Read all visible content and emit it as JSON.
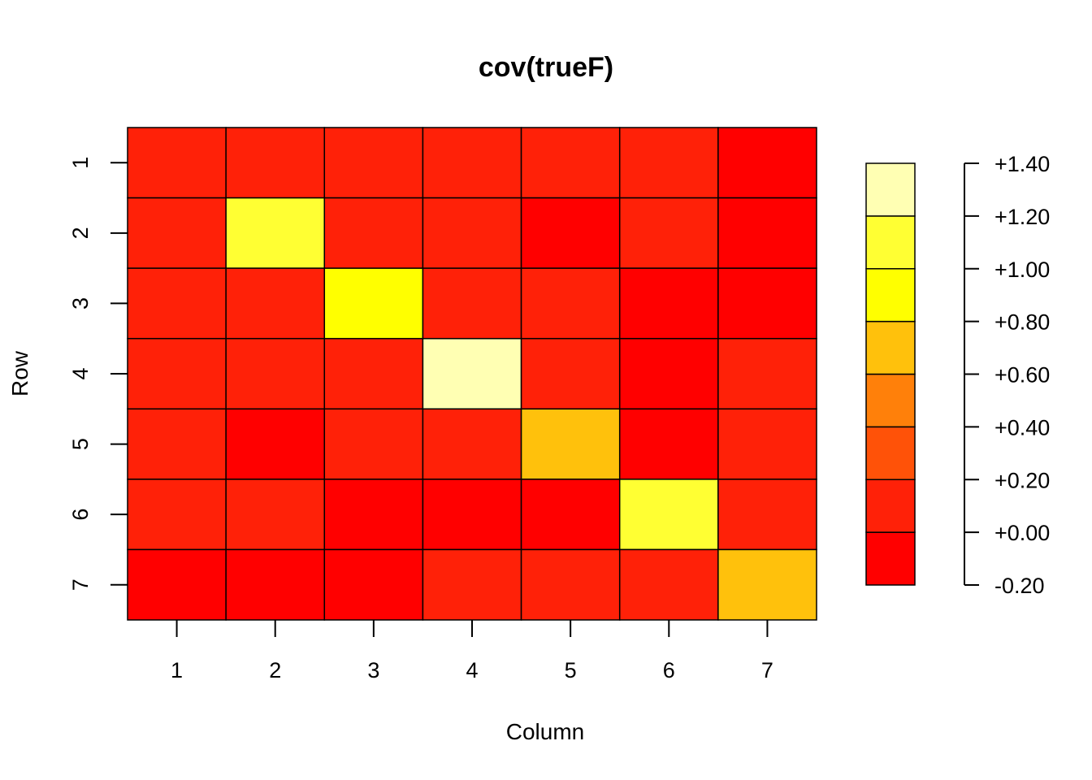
{
  "chart_data": {
    "type": "heatmap",
    "title": "cov(trueF)",
    "xlabel": "Column",
    "ylabel": "Row",
    "rows": [
      "1",
      "2",
      "3",
      "4",
      "5",
      "6",
      "7"
    ],
    "columns": [
      "1",
      "2",
      "3",
      "4",
      "5",
      "6",
      "7"
    ],
    "values": [
      [
        0.1,
        0.1,
        0.1,
        0.1,
        0.1,
        0.1,
        -0.05
      ],
      [
        0.1,
        1.1,
        0.1,
        0.1,
        -0.05,
        0.1,
        -0.05
      ],
      [
        0.1,
        0.1,
        0.9,
        0.1,
        0.1,
        -0.05,
        -0.05
      ],
      [
        0.1,
        0.1,
        0.1,
        1.3,
        0.1,
        -0.05,
        0.1
      ],
      [
        0.1,
        -0.05,
        0.1,
        0.1,
        0.7,
        -0.05,
        0.1
      ],
      [
        0.1,
        0.1,
        -0.05,
        -0.05,
        -0.05,
        1.1,
        0.1
      ],
      [
        -0.05,
        -0.05,
        -0.05,
        0.1,
        0.1,
        0.1,
        0.7
      ]
    ],
    "color_scale": {
      "breaks": [
        -0.2,
        0.0,
        0.2,
        0.4,
        0.6,
        0.8,
        1.0,
        1.2,
        1.4
      ],
      "colors": [
        "#FF0000",
        "#FF2108",
        "#FF5208",
        "#FF800A",
        "#FFC10C",
        "#FFFF00",
        "#FFFF33",
        "#FFFFB3"
      ],
      "tick_labels": [
        "-0.20",
        "+0.00",
        "+0.20",
        "+0.40",
        "+0.60",
        "+0.80",
        "+1.00",
        "+1.20",
        "+1.40"
      ]
    },
    "legend_position": "right"
  }
}
